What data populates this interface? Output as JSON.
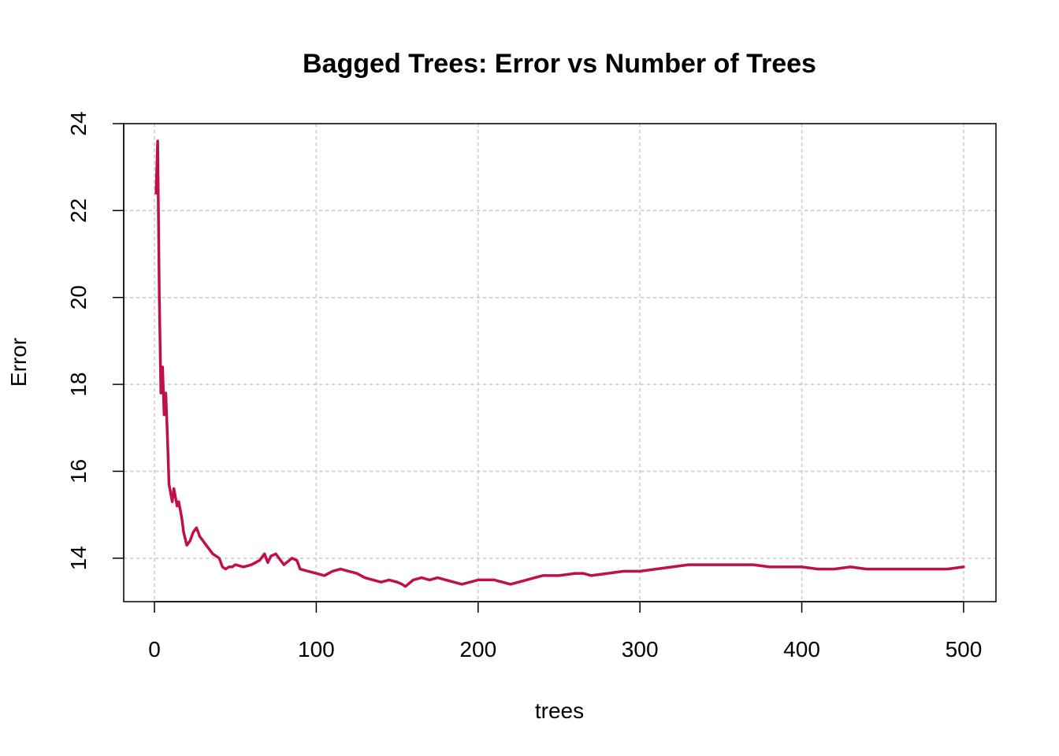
{
  "chart_data": {
    "type": "line",
    "title": "Bagged Trees: Error vs Number of Trees",
    "xlabel": "trees",
    "ylabel": "Error",
    "xlim": [
      -19,
      520
    ],
    "ylim": [
      13.0,
      24.0
    ],
    "x_ticks": [
      0,
      100,
      200,
      300,
      400,
      500
    ],
    "y_ticks": [
      14,
      16,
      18,
      20,
      22,
      24
    ],
    "grid": true,
    "colors": {
      "series": "#C0104A",
      "grid": "#C8C8C8",
      "axis": "#000000"
    },
    "series": [
      {
        "x": [
          1,
          2,
          3,
          4,
          5,
          6,
          7,
          8,
          9,
          10,
          11,
          12,
          13,
          14,
          15,
          16,
          17,
          18,
          20,
          22,
          24,
          26,
          28,
          30,
          32,
          34,
          36,
          38,
          40,
          42,
          44,
          46,
          48,
          50,
          55,
          60,
          65,
          68,
          70,
          72,
          75,
          78,
          80,
          85,
          88,
          90,
          95,
          100,
          105,
          110,
          115,
          120,
          125,
          130,
          135,
          140,
          145,
          150,
          153,
          155,
          160,
          165,
          170,
          175,
          180,
          185,
          190,
          195,
          200,
          205,
          210,
          215,
          220,
          225,
          230,
          235,
          240,
          250,
          260,
          265,
          270,
          280,
          290,
          300,
          310,
          320,
          330,
          340,
          350,
          360,
          370,
          380,
          390,
          400,
          410,
          420,
          430,
          440,
          450,
          460,
          470,
          480,
          490,
          500
        ],
        "values": [
          22.4,
          23.6,
          20.0,
          17.8,
          18.4,
          17.3,
          17.8,
          16.8,
          15.7,
          15.5,
          15.3,
          15.6,
          15.4,
          15.2,
          15.3,
          15.1,
          14.9,
          14.6,
          14.3,
          14.4,
          14.6,
          14.7,
          14.5,
          14.4,
          14.3,
          14.2,
          14.1,
          14.05,
          14.0,
          13.8,
          13.75,
          13.8,
          13.8,
          13.85,
          13.8,
          13.85,
          13.95,
          14.1,
          13.9,
          14.05,
          14.1,
          13.95,
          13.85,
          14.0,
          13.95,
          13.75,
          13.7,
          13.65,
          13.6,
          13.7,
          13.75,
          13.7,
          13.65,
          13.55,
          13.5,
          13.45,
          13.5,
          13.45,
          13.4,
          13.35,
          13.5,
          13.55,
          13.5,
          13.55,
          13.5,
          13.45,
          13.4,
          13.45,
          13.5,
          13.5,
          13.5,
          13.45,
          13.4,
          13.45,
          13.5,
          13.55,
          13.6,
          13.6,
          13.65,
          13.65,
          13.6,
          13.65,
          13.7,
          13.7,
          13.75,
          13.8,
          13.85,
          13.85,
          13.85,
          13.85,
          13.85,
          13.8,
          13.8,
          13.8,
          13.75,
          13.75,
          13.8,
          13.75,
          13.75,
          13.75,
          13.75,
          13.75,
          13.75,
          13.8
        ]
      }
    ]
  }
}
